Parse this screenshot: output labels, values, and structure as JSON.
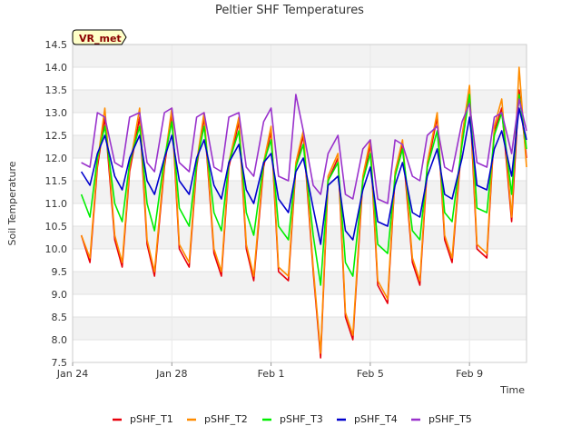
{
  "chart_data": {
    "type": "line",
    "title": "Peltier SHF Temperatures",
    "xlabel": "Time",
    "ylabel": "Soil Temperature",
    "badge": "VR_met",
    "x_range_days": [
      0,
      18.3
    ],
    "ylim": [
      7.5,
      14.5
    ],
    "y_ticks": [
      "7.5",
      "8.0",
      "8.5",
      "9.0",
      "9.5",
      "10.0",
      "10.5",
      "11.0",
      "11.5",
      "12.0",
      "12.5",
      "13.0",
      "13.5",
      "14.0",
      "14.5"
    ],
    "x_ticks": [
      {
        "label": "Jan 24",
        "day": 0
      },
      {
        "label": "Jan 28",
        "day": 4
      },
      {
        "label": "Feb 1",
        "day": 8
      },
      {
        "label": "Feb 5",
        "day": 12
      },
      {
        "label": "Feb 9",
        "day": 16
      }
    ],
    "grid": true,
    "legend_position": "bottom",
    "series": [
      {
        "name": "pSHF_T1",
        "color": "#e8000b",
        "x": [
          0.35,
          0.7,
          1.0,
          1.3,
          1.7,
          2.0,
          2.3,
          2.7,
          3.0,
          3.3,
          3.7,
          4.0,
          4.3,
          4.7,
          5.0,
          5.3,
          5.7,
          6.0,
          6.3,
          6.7,
          7.0,
          7.3,
          7.7,
          8.0,
          8.3,
          8.7,
          9.0,
          9.3,
          9.7,
          10.0,
          10.3,
          10.7,
          11.0,
          11.3,
          11.7,
          12.0,
          12.3,
          12.7,
          13.0,
          13.3,
          13.7,
          14.0,
          14.3,
          14.7,
          15.0,
          15.3,
          15.7,
          16.0,
          16.3,
          16.7,
          17.0,
          17.3,
          17.7,
          18.0,
          18.3
        ],
        "y": [
          10.3,
          9.7,
          11.8,
          12.9,
          10.2,
          9.6,
          11.7,
          12.9,
          10.1,
          9.4,
          11.8,
          13.0,
          10.0,
          9.6,
          11.8,
          12.9,
          9.9,
          9.4,
          11.8,
          12.8,
          10.0,
          9.3,
          11.8,
          12.6,
          9.5,
          9.3,
          11.8,
          12.5,
          9.5,
          7.6,
          11.5,
          12.0,
          8.5,
          8.0,
          11.5,
          12.3,
          9.2,
          8.8,
          11.6,
          12.3,
          9.7,
          9.2,
          11.8,
          12.9,
          10.2,
          9.7,
          12.4,
          13.4,
          10.0,
          9.8,
          12.6,
          13.1,
          10.6,
          13.5,
          12.0
        ]
      },
      {
        "name": "pSHF_T2",
        "color": "#ff8c00",
        "x": [
          0.35,
          0.7,
          1.0,
          1.3,
          1.7,
          2.0,
          2.3,
          2.7,
          3.0,
          3.3,
          3.7,
          4.0,
          4.3,
          4.7,
          5.0,
          5.3,
          5.7,
          6.0,
          6.3,
          6.7,
          7.0,
          7.3,
          7.7,
          8.0,
          8.3,
          8.7,
          9.0,
          9.3,
          9.7,
          10.0,
          10.3,
          10.7,
          11.0,
          11.3,
          11.7,
          12.0,
          12.3,
          12.7,
          13.0,
          13.3,
          13.7,
          14.0,
          14.3,
          14.7,
          15.0,
          15.3,
          15.7,
          16.0,
          16.3,
          16.7,
          17.0,
          17.3,
          17.7,
          18.0,
          18.3
        ],
        "y": [
          10.3,
          9.8,
          11.9,
          13.1,
          10.3,
          9.7,
          11.8,
          13.1,
          10.2,
          9.5,
          11.9,
          13.1,
          10.1,
          9.7,
          11.9,
          13.0,
          10.0,
          9.5,
          11.9,
          12.9,
          10.1,
          9.4,
          11.9,
          12.7,
          9.6,
          9.4,
          11.9,
          12.6,
          9.6,
          7.7,
          11.6,
          12.1,
          8.6,
          8.1,
          11.6,
          12.4,
          9.3,
          8.9,
          11.7,
          12.4,
          9.8,
          9.3,
          11.9,
          13.0,
          10.3,
          9.8,
          12.5,
          13.6,
          10.1,
          9.9,
          12.7,
          13.3,
          10.7,
          14.0,
          11.8
        ]
      },
      {
        "name": "pSHF_T3",
        "color": "#00ee00",
        "x": [
          0.35,
          0.7,
          1.0,
          1.3,
          1.7,
          2.0,
          2.3,
          2.7,
          3.0,
          3.3,
          3.7,
          4.0,
          4.3,
          4.7,
          5.0,
          5.3,
          5.7,
          6.0,
          6.3,
          6.7,
          7.0,
          7.3,
          7.7,
          8.0,
          8.3,
          8.7,
          9.0,
          9.3,
          9.7,
          10.0,
          10.3,
          10.7,
          11.0,
          11.3,
          11.7,
          12.0,
          12.3,
          12.7,
          13.0,
          13.3,
          13.7,
          14.0,
          14.3,
          14.7,
          15.0,
          15.3,
          15.7,
          16.0,
          16.3,
          16.7,
          17.0,
          17.3,
          17.7,
          18.0,
          18.3
        ],
        "y": [
          11.2,
          10.7,
          12.0,
          12.7,
          11.0,
          10.6,
          11.9,
          12.7,
          11.0,
          10.4,
          12.0,
          12.8,
          10.9,
          10.5,
          11.9,
          12.7,
          10.8,
          10.4,
          11.9,
          12.6,
          10.8,
          10.3,
          11.9,
          12.4,
          10.5,
          10.2,
          11.8,
          12.3,
          10.3,
          9.2,
          11.5,
          11.9,
          9.7,
          9.4,
          11.5,
          12.1,
          10.1,
          9.9,
          11.6,
          12.2,
          10.4,
          10.2,
          11.8,
          12.6,
          10.8,
          10.6,
          12.3,
          13.4,
          10.9,
          10.8,
          12.5,
          13.0,
          11.2,
          13.4,
          12.2
        ]
      },
      {
        "name": "pSHF_T4",
        "color": "#0000cd",
        "x": [
          0.35,
          0.7,
          1.0,
          1.3,
          1.7,
          2.0,
          2.3,
          2.7,
          3.0,
          3.3,
          3.7,
          4.0,
          4.3,
          4.7,
          5.0,
          5.3,
          5.7,
          6.0,
          6.3,
          6.7,
          7.0,
          7.3,
          7.7,
          8.0,
          8.3,
          8.7,
          9.0,
          9.3,
          9.7,
          10.0,
          10.3,
          10.7,
          11.0,
          11.3,
          11.7,
          12.0,
          12.3,
          12.7,
          13.0,
          13.3,
          13.7,
          14.0,
          14.3,
          14.7,
          15.0,
          15.3,
          15.7,
          16.0,
          16.3,
          16.7,
          17.0,
          17.3,
          17.7,
          18.0,
          18.3
        ],
        "y": [
          11.7,
          11.4,
          12.1,
          12.5,
          11.6,
          11.3,
          12.0,
          12.5,
          11.5,
          11.2,
          12.0,
          12.5,
          11.5,
          11.2,
          12.0,
          12.4,
          11.4,
          11.1,
          11.9,
          12.3,
          11.3,
          11.0,
          11.9,
          12.1,
          11.1,
          10.8,
          11.7,
          12.0,
          10.9,
          10.1,
          11.4,
          11.6,
          10.4,
          10.2,
          11.3,
          11.8,
          10.6,
          10.5,
          11.4,
          11.9,
          10.8,
          10.7,
          11.6,
          12.2,
          11.2,
          11.1,
          12.0,
          12.9,
          11.4,
          11.3,
          12.2,
          12.6,
          11.6,
          13.1,
          12.4
        ]
      },
      {
        "name": "pSHF_T5",
        "color": "#9932cc",
        "x": [
          0.35,
          0.7,
          1.0,
          1.3,
          1.7,
          2.0,
          2.3,
          2.7,
          3.0,
          3.3,
          3.7,
          4.0,
          4.3,
          4.7,
          5.0,
          5.3,
          5.7,
          6.0,
          6.3,
          6.7,
          7.0,
          7.3,
          7.7,
          8.0,
          8.3,
          8.7,
          9.0,
          9.3,
          9.7,
          10.0,
          10.3,
          10.7,
          11.0,
          11.3,
          11.7,
          12.0,
          12.3,
          12.7,
          13.0,
          13.3,
          13.7,
          14.0,
          14.3,
          14.7,
          15.0,
          15.3,
          15.7,
          16.0,
          16.3,
          16.7,
          17.0,
          17.3,
          17.7,
          18.0,
          18.3
        ],
        "y": [
          11.9,
          11.8,
          13.0,
          12.9,
          11.9,
          11.8,
          12.9,
          13.0,
          11.9,
          11.7,
          13.0,
          13.1,
          11.9,
          11.7,
          12.9,
          13.0,
          11.8,
          11.7,
          12.9,
          13.0,
          11.8,
          11.6,
          12.8,
          13.1,
          11.6,
          11.5,
          13.4,
          12.6,
          11.4,
          11.2,
          12.1,
          12.5,
          11.2,
          11.1,
          12.2,
          12.4,
          11.1,
          11.0,
          12.4,
          12.3,
          11.6,
          11.5,
          12.5,
          12.7,
          11.8,
          11.7,
          12.8,
          13.2,
          11.9,
          11.8,
          12.9,
          13.0,
          12.1,
          13.3,
          12.6
        ]
      }
    ]
  }
}
